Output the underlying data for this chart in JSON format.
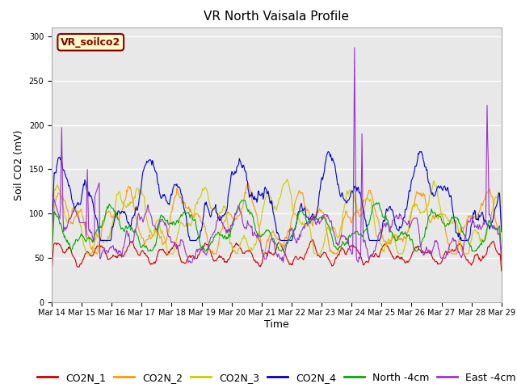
{
  "title": "VR North Vaisala Profile",
  "ylabel": "Soil CO2 (mV)",
  "xlabel": "Time",
  "subtitle_box": "VR_soilco2",
  "ylim": [
    0,
    310
  ],
  "yticks": [
    0,
    50,
    100,
    150,
    200,
    250,
    300
  ],
  "xtick_labels": [
    "Mar 14",
    "Mar 15",
    "Mar 16",
    "Mar 17",
    "Mar 18",
    "Mar 19",
    "Mar 20",
    "Mar 21",
    "Mar 22",
    "Mar 23",
    "Mar 24",
    "Mar 25",
    "Mar 26",
    "Mar 27",
    "Mar 28",
    "Mar 29"
  ],
  "series_colors": {
    "CO2N_1": "#cc0000",
    "CO2N_2": "#ff9900",
    "CO2N_3": "#cccc00",
    "CO2N_4": "#0000cc",
    "North -4cm": "#00aa00",
    "East -4cm": "#9933cc"
  },
  "background_color": "#e8e8e8",
  "figure_background": "#ffffff",
  "grid_color": "#ffffff",
  "title_fontsize": 11,
  "axis_label_fontsize": 9,
  "tick_fontsize": 7,
  "legend_fontsize": 9
}
